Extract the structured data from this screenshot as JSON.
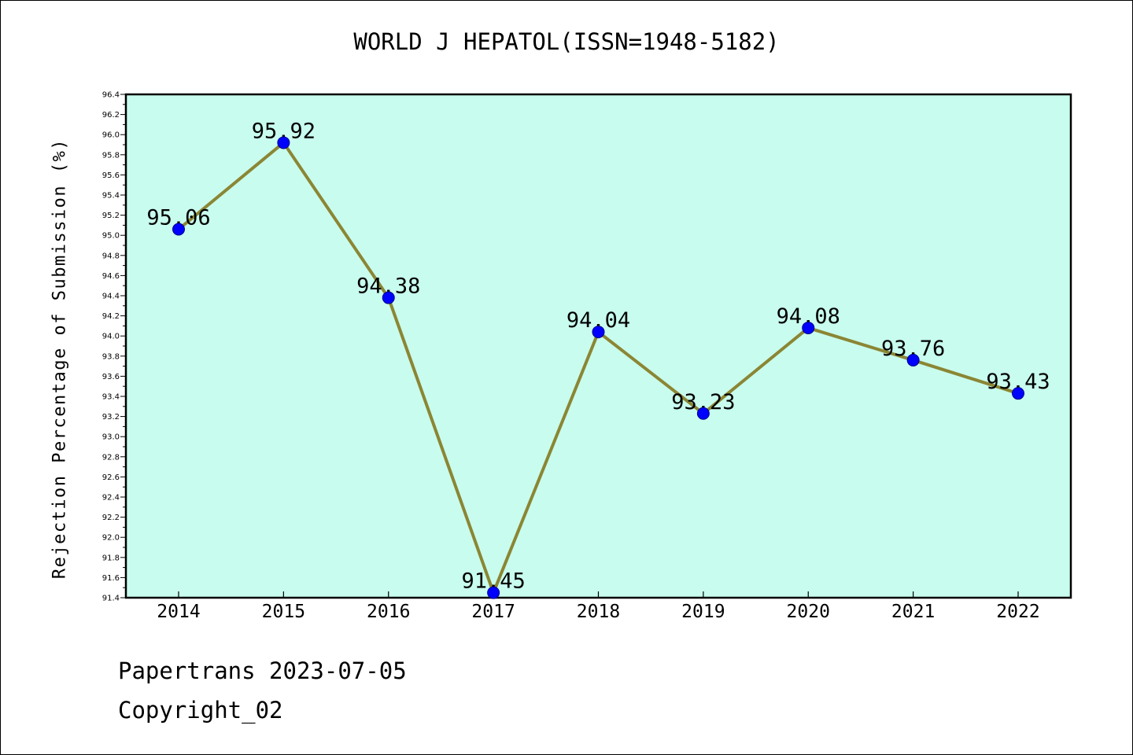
{
  "chart_data": {
    "type": "line",
    "title": "WORLD J HEPATOL(ISSN=1948-5182)",
    "ylabel": "Rejection Percentage of Submission (%)",
    "xlabel": "",
    "categories": [
      "2014",
      "2015",
      "2016",
      "2017",
      "2018",
      "2019",
      "2020",
      "2021",
      "2022"
    ],
    "values": [
      95.06,
      95.92,
      94.38,
      91.45,
      94.04,
      93.23,
      94.08,
      93.76,
      93.43
    ],
    "data_labels": [
      "95.06",
      "95.92",
      "94.38",
      "91.45",
      "94.04",
      "93.23",
      "94.08",
      "93.76",
      "93.43"
    ],
    "ylim": [
      91.4,
      96.4
    ],
    "ytick_step": 0.2,
    "grid": false,
    "colors": {
      "plot_background": "#c8fcee",
      "line": "#8b8634",
      "marker": "#0000ff"
    }
  },
  "footer": {
    "line1": "Papertrans 2023-07-05",
    "line2": "Copyright_02"
  }
}
